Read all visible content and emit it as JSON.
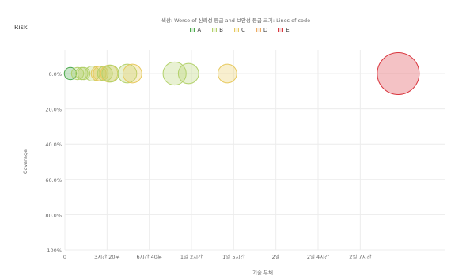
{
  "title": "Risk",
  "legend": {
    "caption": "색상: Worse of 신뢰성 등급 and 보안성 등급  크기: Lines of code",
    "items": [
      {
        "label": "A",
        "color": "#4aa84a"
      },
      {
        "label": "B",
        "color": "#b2d16a"
      },
      {
        "label": "C",
        "color": "#e7c95d"
      },
      {
        "label": "D",
        "color": "#eca960"
      },
      {
        "label": "E",
        "color": "#d9363e"
      }
    ]
  },
  "chart_data": {
    "type": "scatter",
    "xlabel": "기술 부채",
    "ylabel": "Coverage",
    "x_ticks": [
      "0",
      "3시간 20분",
      "6시간 40분",
      "1일 2시간",
      "1일 5시간",
      "2일",
      "2일 4시간",
      "2일 7시간"
    ],
    "y_ticks": [
      "0.0%",
      "20.0%",
      "40.0%",
      "60.0%",
      "80.0%",
      "100%"
    ],
    "xlim": [
      0,
      0.9
    ],
    "ylim": [
      0,
      100
    ],
    "y_inverted": true,
    "grid": true,
    "bubble_size_metric": "Lines of code",
    "points": [
      {
        "x": 0.013,
        "y": 0,
        "rating": "A",
        "size": 1
      },
      {
        "x": 0.03,
        "y": 0,
        "rating": "B",
        "size": 1
      },
      {
        "x": 0.04,
        "y": 0,
        "rating": "B",
        "size": 1
      },
      {
        "x": 0.045,
        "y": 0,
        "rating": "B",
        "size": 1
      },
      {
        "x": 0.065,
        "y": 0,
        "rating": "B",
        "size": 2
      },
      {
        "x": 0.08,
        "y": 0,
        "rating": "C",
        "size": 2
      },
      {
        "x": 0.085,
        "y": 0,
        "rating": "C",
        "size": 2
      },
      {
        "x": 0.095,
        "y": 0,
        "rating": "B",
        "size": 2
      },
      {
        "x": 0.105,
        "y": 0,
        "rating": "C",
        "size": 3
      },
      {
        "x": 0.108,
        "y": 0,
        "rating": "B",
        "size": 3
      },
      {
        "x": 0.148,
        "y": 0,
        "rating": "B",
        "size": 4
      },
      {
        "x": 0.16,
        "y": 0,
        "rating": "C",
        "size": 4
      },
      {
        "x": 0.26,
        "y": 0,
        "rating": "B",
        "size": 7
      },
      {
        "x": 0.293,
        "y": 0,
        "rating": "B",
        "size": 5
      },
      {
        "x": 0.385,
        "y": 0,
        "rating": "C",
        "size": 4
      },
      {
        "x": 0.79,
        "y": 0,
        "rating": "E",
        "size": 30
      }
    ]
  }
}
